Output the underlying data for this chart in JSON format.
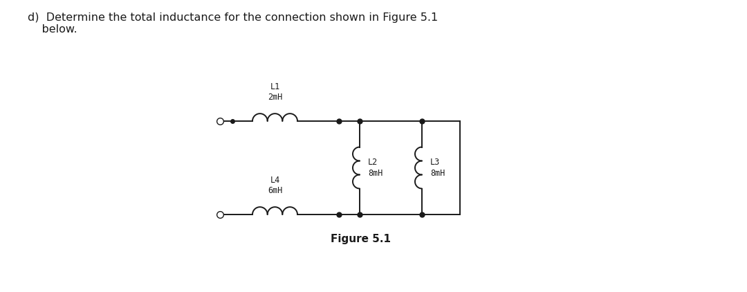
{
  "title_text": "d)  Determine the total inductance for the connection shown in Figure 5.1\n    below.",
  "figure_label": "Figure 5.1",
  "background_color": "#ffffff",
  "line_color": "#1a1a1a",
  "text_color": "#1a1a1a",
  "L1_label": "L1\n2mH",
  "L2_label": "L2\n8mH",
  "L3_label": "L3\n8mH",
  "L4_label": "L4\n6mH",
  "fig_width": 10.8,
  "fig_height": 4.22,
  "dpi": 100
}
